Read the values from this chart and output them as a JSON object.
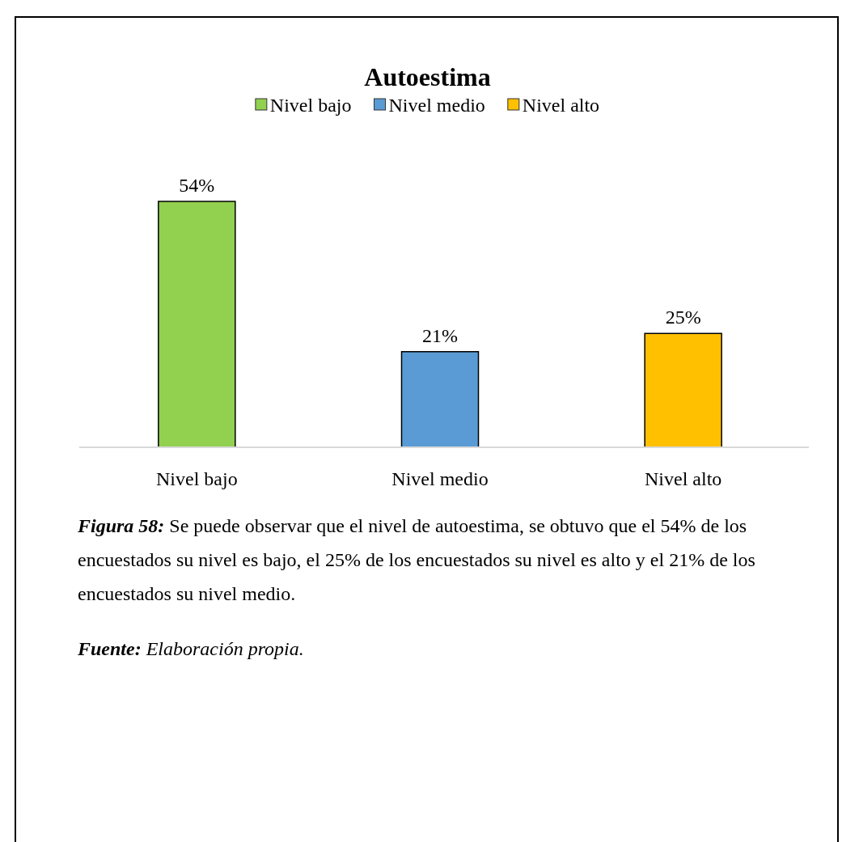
{
  "chart_data": {
    "type": "bar",
    "title": "Autoestima",
    "categories": [
      "Nivel bajo",
      "Nivel medio",
      "Nivel alto"
    ],
    "series": [
      {
        "name": "Nivel bajo",
        "color": "#92d050",
        "values": [
          54,
          null,
          null
        ],
        "value_labels": [
          "54%",
          null,
          null
        ]
      },
      {
        "name": "Nivel medio",
        "color": "#5b9bd5",
        "values": [
          null,
          21,
          null
        ],
        "value_labels": [
          null,
          "21%",
          null
        ]
      },
      {
        "name": "Nivel alto",
        "color": "#ffc000",
        "values": [
          null,
          null,
          25
        ],
        "value_labels": [
          null,
          null,
          "25%"
        ]
      }
    ],
    "legend": "top",
    "annotations": [
      "Figura 58: Se puede observar que el nivel de autoestima, se obtuvo que el 54% de los encuestados su nivel es bajo, el 25% de los encuestados su nivel es alto y el 21% de los encuestados su nivel medio.",
      "Fuente: Elaboración propia."
    ]
  }
}
